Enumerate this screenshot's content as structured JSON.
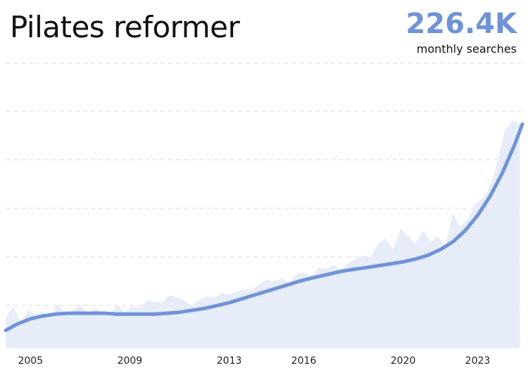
{
  "title": "Pilates reformer",
  "metric": {
    "value": "226.4K",
    "label": "monthly searches"
  },
  "colors": {
    "line": "#6f93d6",
    "fill": "#e6ecf8",
    "grid": "#e5e5e5"
  },
  "chart_data": {
    "type": "area",
    "title": "Pilates reformer",
    "xlabel": "",
    "ylabel": "",
    "grid": true,
    "x_ticks": [
      "2005",
      "2009",
      "2013",
      "2016",
      "2020",
      "2023"
    ],
    "xlim": [
      2004.0,
      2024.8
    ],
    "ylim": [
      0,
      300
    ],
    "series": [
      {
        "role": "raw",
        "x": [
          2004.0,
          2004.3,
          2004.6,
          2004.9,
          2005.2,
          2005.5,
          2005.8,
          2006.1,
          2006.4,
          2006.7,
          2007.0,
          2007.3,
          2007.6,
          2007.9,
          2008.2,
          2008.5,
          2008.8,
          2009.1,
          2009.4,
          2009.7,
          2010.0,
          2010.3,
          2010.6,
          2010.9,
          2011.2,
          2011.5,
          2011.8,
          2012.1,
          2012.4,
          2012.7,
          2013.0,
          2013.3,
          2013.6,
          2013.9,
          2014.2,
          2014.5,
          2014.8,
          2015.1,
          2015.4,
          2015.7,
          2016.0,
          2016.3,
          2016.6,
          2016.9,
          2017.2,
          2017.5,
          2017.8,
          2018.1,
          2018.4,
          2018.7,
          2019.0,
          2019.3,
          2019.6,
          2019.9,
          2020.2,
          2020.5,
          2020.8,
          2021.1,
          2021.4,
          2021.7,
          2022.0,
          2022.3,
          2022.6,
          2022.9,
          2023.2,
          2023.5,
          2023.8,
          2024.1,
          2024.4,
          2024.7
        ],
        "values": [
          32,
          44,
          27,
          40,
          36,
          38,
          33,
          47,
          35,
          40,
          45,
          37,
          42,
          39,
          36,
          45,
          38,
          44,
          43,
          50,
          49,
          48,
          56,
          54,
          50,
          45,
          51,
          55,
          53,
          58,
          57,
          60,
          62,
          61,
          68,
          72,
          70,
          74,
          69,
          78,
          80,
          76,
          85,
          84,
          88,
          82,
          90,
          94,
          98,
          96,
          110,
          116,
          104,
          126,
          118,
          110,
          124,
          112,
          118,
          108,
          142,
          128,
          136,
          152,
          158,
          170,
          196,
          230,
          240,
          236
        ]
      },
      {
        "role": "trend",
        "x": [
          2004.0,
          2004.5,
          2005.0,
          2005.5,
          2006.0,
          2006.5,
          2007.0,
          2007.5,
          2008.0,
          2008.5,
          2009.0,
          2009.5,
          2010.0,
          2010.5,
          2011.0,
          2011.5,
          2012.0,
          2012.5,
          2013.0,
          2013.5,
          2014.0,
          2014.5,
          2015.0,
          2015.5,
          2016.0,
          2016.5,
          2017.0,
          2017.5,
          2018.0,
          2018.5,
          2019.0,
          2019.5,
          2020.0,
          2020.5,
          2021.0,
          2021.5,
          2022.0,
          2022.5,
          2023.0,
          2023.5,
          2024.0,
          2024.5,
          2024.8
        ],
        "values": [
          19,
          26,
          31,
          34,
          36,
          37,
          37,
          37,
          37,
          36,
          36,
          36,
          36,
          37,
          38,
          40,
          42,
          45,
          48,
          52,
          56,
          60,
          64,
          68,
          72,
          75,
          78,
          81,
          83,
          85,
          87,
          89,
          91,
          94,
          98,
          104,
          112,
          124,
          140,
          160,
          185,
          215,
          236
        ]
      }
    ]
  }
}
